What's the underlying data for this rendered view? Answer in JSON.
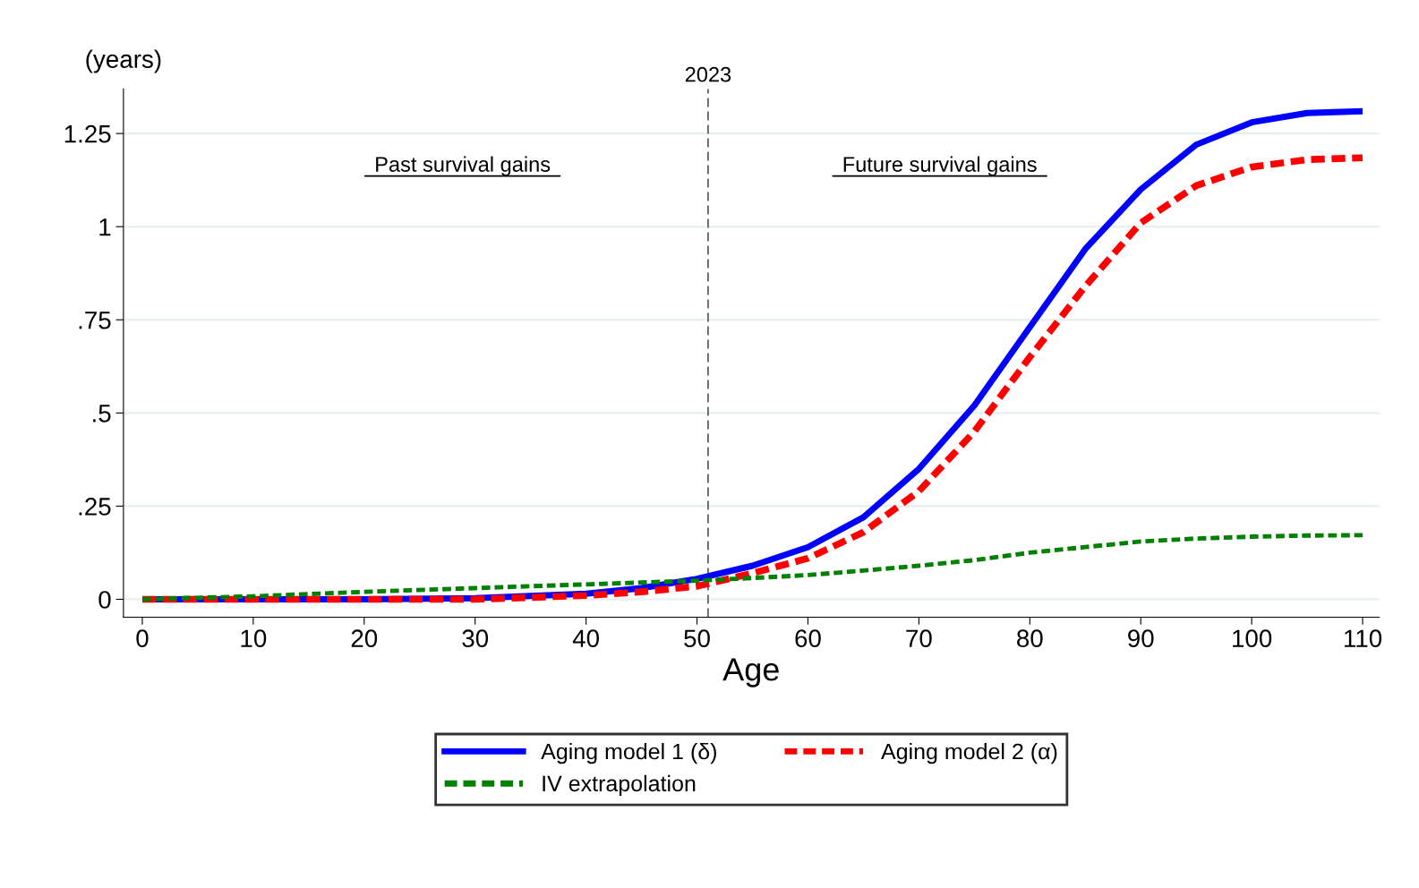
{
  "chart_data": {
    "type": "line",
    "xlabel": "Age",
    "ylabel": "(years)",
    "xlim": [
      -1.7,
      111.5
    ],
    "xticks": [
      0,
      10,
      20,
      30,
      40,
      50,
      60,
      70,
      80,
      90,
      100,
      110
    ],
    "ylim": [
      -0.048,
      1.37
    ],
    "yticks": [
      0,
      {
        "value": 0.25,
        "label": ".25"
      },
      {
        "value": 0.5,
        "label": ".5"
      },
      {
        "value": 0.75,
        "label": ".75"
      },
      1,
      1.25
    ],
    "grid": "y",
    "legend": "bottom",
    "x": [
      0,
      10,
      20,
      30,
      40,
      45,
      50,
      55,
      60,
      65,
      70,
      75,
      80,
      85,
      90,
      95,
      100,
      105,
      110
    ],
    "series": [
      {
        "name": "Aging model 1 (δ)",
        "color": "#0000ff",
        "line_style": "solid",
        "values": [
          0,
          0,
          0,
          0.003,
          0.015,
          0.03,
          0.055,
          0.09,
          0.14,
          0.22,
          0.35,
          0.52,
          0.73,
          0.94,
          1.1,
          1.22,
          1.28,
          1.305,
          1.31
        ]
      },
      {
        "name": "Aging model 2 (α)",
        "color": "#ff0000",
        "line_style": "dashed",
        "values": [
          0,
          0,
          0,
          0,
          0.01,
          0.02,
          0.035,
          0.07,
          0.11,
          0.18,
          0.29,
          0.45,
          0.65,
          0.84,
          1.01,
          1.11,
          1.16,
          1.18,
          1.185
        ]
      },
      {
        "name": "IV extrapolation",
        "color": "#008000",
        "line_style": "dashed",
        "values": [
          0,
          0.008,
          0.02,
          0.03,
          0.04,
          0.045,
          0.05,
          0.057,
          0.065,
          0.077,
          0.09,
          0.105,
          0.125,
          0.14,
          0.155,
          0.163,
          0.168,
          0.171,
          0.172
        ]
      }
    ],
    "ref_lines": [
      {
        "axis": "x",
        "value": 51,
        "color": "#555555",
        "line_style": "dashed"
      }
    ],
    "annotations": [
      "2023",
      "Past survival gains",
      "Future survival gains"
    ]
  }
}
